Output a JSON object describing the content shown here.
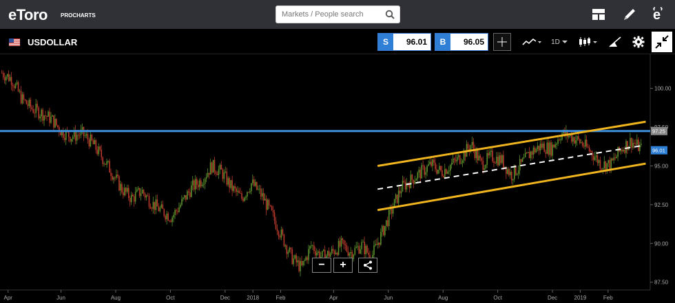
{
  "header": {
    "logo_text": "eToro",
    "logo_sub": "PROCHARTS",
    "search_placeholder": "Markets / People search",
    "icons": [
      "search-icon",
      "layout-icon",
      "pencil-icon",
      "etoro-e-icon"
    ]
  },
  "toolbar": {
    "instrument": "USDOLLAR",
    "sell_label": "S",
    "sell_price": "96.01",
    "buy_label": "B",
    "buy_price": "96.05",
    "timeframe": "1D",
    "icons": [
      "crosshair-icon",
      "chart-type-icon",
      "timeframe-dropdown",
      "candlestick-icon",
      "drawing-tools-icon",
      "settings-icon",
      "collapse-icon"
    ]
  },
  "zoom": {
    "minus": "−",
    "plus": "+"
  },
  "colors": {
    "background": "#000000",
    "horizontal_line": "#3d8fdc",
    "channel": "#f0b41e",
    "midline": "#ffffff",
    "candle_up": "#5a8f2c",
    "candle_down": "#b8392c",
    "price_tag": "#2f7fd6"
  },
  "chart_data": {
    "type": "candlestick",
    "instrument": "USDOLLAR",
    "y_axis": {
      "ticks": [
        "100.00",
        "97.50",
        "95.00",
        "92.50",
        "90.00",
        "87.50"
      ],
      "range": [
        87.0,
        102.2
      ]
    },
    "x_axis": {
      "ticks": [
        "Apr",
        "Jun",
        "Aug",
        "Oct",
        "Dec",
        "2018",
        "Feb",
        "Apr",
        "Jun",
        "Aug",
        "Oct",
        "Dec",
        "2019",
        "Feb"
      ]
    },
    "horizontal_line": {
      "label": "97.25",
      "value": 97.25
    },
    "current_price_label": "96.01",
    "channel": {
      "upper": {
        "from": [
          "2018-05-20",
          95.0
        ],
        "to": [
          "2019-03-15",
          97.85
        ]
      },
      "lower": {
        "from": [
          "2018-05-20",
          92.15
        ],
        "to": [
          "2019-03-15",
          95.15
        ]
      },
      "mid": {
        "from": [
          "2018-05-20",
          93.5
        ],
        "to": [
          "2019-03-10",
          96.3
        ]
      }
    },
    "price_path": [
      101.0,
      100.6,
      99.3,
      98.7,
      98.4,
      98.0,
      97.2,
      96.9,
      97.1,
      96.5,
      95.6,
      94.6,
      93.5,
      92.9,
      93.4,
      92.6,
      92.1,
      91.7,
      92.6,
      93.6,
      94.1,
      95.0,
      94.6,
      93.6,
      92.9,
      93.9,
      93.1,
      91.9,
      90.5,
      89.1,
      88.4,
      89.9,
      89.1,
      89.4,
      89.9,
      89.4,
      89.9,
      89.1,
      90.6,
      92.1,
      93.6,
      94.1,
      94.6,
      95.1,
      94.6,
      95.1,
      95.6,
      96.4,
      95.1,
      95.6,
      95.4,
      94.4,
      95.1,
      95.9,
      96.3,
      96.1,
      97.1,
      96.9,
      96.5,
      95.9,
      95.1,
      95.1,
      96.1,
      96.6,
      96.1
    ]
  }
}
